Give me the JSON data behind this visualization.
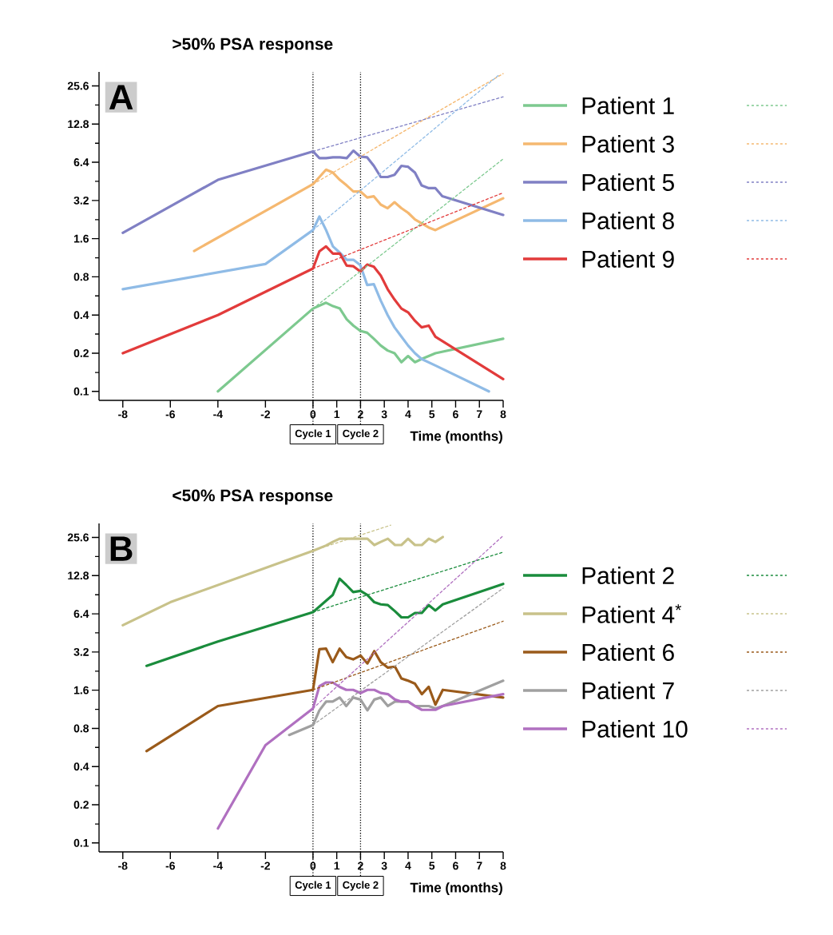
{
  "chart_data": [
    {
      "type": "line",
      "title": ">50% PSA response",
      "xlabel": "Time (months)",
      "annotations": [
        "A"
      ],
      "legend": "right",
      "log": "y",
      "line_style": "solid",
      "xlim": [
        -9,
        8
      ],
      "ylim": [
        0.085,
        33
      ],
      "xticks": [
        -8,
        -6,
        -4,
        -2,
        0,
        1,
        2,
        3,
        4,
        5,
        6,
        7,
        8
      ],
      "yticks": [
        0.1,
        {
          "value": 0.141,
          "label": null
        },
        0.2,
        {
          "value": 0.283,
          "label": null
        },
        0.4,
        {
          "value": 0.566,
          "label": null
        },
        0.8,
        {
          "value": 1.13,
          "label": null
        },
        1.6,
        {
          "value": 2.26,
          "label": null
        },
        3.2,
        {
          "value": 4.53,
          "label": null
        },
        6.4,
        {
          "value": 9.05,
          "label": null
        },
        12.8,
        {
          "value": 18.1,
          "label": null
        },
        25.6
      ],
      "ref_lines": [
        {
          "axis": "x",
          "value": 0,
          "label": "Cycle 1",
          "color": "#000000",
          "line_style": "dotted"
        },
        {
          "axis": "x",
          "value": 2,
          "label": "Cycle 2",
          "color": "#000000",
          "line_style": "dotted"
        }
      ],
      "series": [
        {
          "name": "Patient 1",
          "color": "#7dc98f",
          "x": [
            -4,
            0,
            0.55,
            0.84,
            1.13,
            1.42,
            1.7,
            1.99,
            2.28,
            2.56,
            2.85,
            3.14,
            3.43,
            3.72,
            4.0,
            4.29,
            4.57,
            4.87,
            5.15,
            8
          ],
          "values": [
            0.1,
            0.45,
            0.5,
            0.47,
            0.45,
            0.37,
            0.33,
            0.3,
            0.29,
            0.26,
            0.23,
            0.21,
            0.2,
            0.17,
            0.19,
            0.17,
            0.18,
            0.19,
            0.2,
            0.26
          ]
        },
        {
          "name": "Patient 3",
          "color": "#f5b870",
          "x": [
            -5,
            0,
            0.55,
            0.84,
            1.13,
            1.42,
            1.7,
            1.99,
            2.28,
            2.56,
            2.85,
            3.14,
            3.43,
            3.72,
            4.0,
            4.29,
            4.87,
            5.15,
            5.44,
            8
          ],
          "values": [
            1.28,
            4.3,
            5.6,
            5.3,
            4.65,
            4.2,
            3.77,
            3.77,
            3.38,
            3.45,
            2.97,
            2.78,
            3.1,
            2.78,
            2.56,
            2.27,
            1.96,
            1.87,
            1.99,
            3.33
          ]
        },
        {
          "name": "Patient 5",
          "color": "#8080c4",
          "x": [
            -8,
            -4,
            0,
            0.27,
            0.55,
            0.84,
            1.13,
            1.42,
            1.7,
            1.99,
            2.28,
            2.56,
            2.85,
            3.14,
            3.43,
            3.72,
            4.0,
            4.29,
            4.57,
            4.87,
            5.15,
            5.44,
            8
          ],
          "values": [
            1.78,
            4.65,
            7.8,
            6.9,
            6.9,
            7.0,
            7.0,
            6.9,
            7.9,
            7.1,
            7.0,
            6.0,
            4.9,
            4.9,
            5.1,
            6.0,
            5.9,
            5.3,
            4.2,
            4.0,
            4.0,
            3.46,
            2.46
          ]
        },
        {
          "name": "Patient 8",
          "color": "#8fbbe6",
          "x": [
            -8,
            -2,
            0,
            0.27,
            0.55,
            0.84,
            1.13,
            1.42,
            1.7,
            1.99,
            2.28,
            2.56,
            2.85,
            3.14,
            3.43,
            3.72,
            4.0,
            4.29,
            4.57,
            5.15,
            7.4
          ],
          "values": [
            0.64,
            1.01,
            1.87,
            2.39,
            1.87,
            1.39,
            1.24,
            1.09,
            1.09,
            0.99,
            0.69,
            0.7,
            0.52,
            0.4,
            0.32,
            0.27,
            0.23,
            0.2,
            0.18,
            0.16,
            0.1
          ]
        },
        {
          "name": "Patient 9",
          "color": "#e23b3b",
          "x": [
            -8,
            -4,
            0,
            0.27,
            0.55,
            0.84,
            1.13,
            1.42,
            1.7,
            1.99,
            2.28,
            2.56,
            2.85,
            3.14,
            3.43,
            3.72,
            4.0,
            4.29,
            4.57,
            4.87,
            5.15,
            8
          ],
          "values": [
            0.2,
            0.4,
            0.93,
            1.27,
            1.39,
            1.22,
            1.22,
            0.98,
            0.97,
            0.88,
            1.0,
            0.96,
            0.82,
            0.64,
            0.53,
            0.45,
            0.42,
            0.36,
            0.32,
            0.33,
            0.27,
            0.125
          ]
        },
        {
          "color": "#7dc98f",
          "line_style": "dashed",
          "x": [
            0,
            8
          ],
          "values": [
            0.45,
            6.8
          ]
        },
        {
          "color": "#f5b870",
          "line_style": "dashed",
          "x": [
            0,
            8
          ],
          "values": [
            4.3,
            32
          ]
        },
        {
          "color": "#8080c4",
          "line_style": "dashed",
          "x": [
            0,
            8
          ],
          "values": [
            7.8,
            21
          ]
        },
        {
          "color": "#8fbbe6",
          "line_style": "dashed",
          "x": [
            0,
            7.8
          ],
          "values": [
            1.87,
            31
          ]
        },
        {
          "color": "#e23b3b",
          "line_style": "dashed",
          "x": [
            0,
            8
          ],
          "values": [
            0.93,
            3.68
          ]
        }
      ]
    },
    {
      "type": "line",
      "title": "<50% PSA response",
      "xlabel": "Time (months)",
      "annotations": [
        "B"
      ],
      "legend": "right",
      "log": "y",
      "line_style": "solid",
      "xlim": [
        -9,
        8
      ],
      "ylim": [
        0.085,
        33
      ],
      "xticks": [
        -8,
        -6,
        -4,
        -2,
        0,
        1,
        2,
        3,
        4,
        5,
        6,
        7,
        8
      ],
      "yticks": [
        0.1,
        {
          "value": 0.141,
          "label": null
        },
        0.2,
        {
          "value": 0.283,
          "label": null
        },
        0.4,
        {
          "value": 0.566,
          "label": null
        },
        0.8,
        {
          "value": 1.13,
          "label": null
        },
        1.6,
        {
          "value": 2.26,
          "label": null
        },
        3.2,
        {
          "value": 4.53,
          "label": null
        },
        6.4,
        {
          "value": 9.05,
          "label": null
        },
        12.8,
        {
          "value": 18.1,
          "label": null
        },
        25.6
      ],
      "ref_lines": [
        {
          "axis": "x",
          "value": 0,
          "label": "Cycle 1",
          "color": "#000000",
          "line_style": "dotted"
        },
        {
          "axis": "x",
          "value": 2,
          "label": "Cycle 2",
          "color": "#000000",
          "line_style": "dotted"
        }
      ],
      "series": [
        {
          "name": "Patient 2",
          "color": "#1a8c3c",
          "x": [
            -7,
            -4,
            0,
            0.83,
            1.12,
            1.4,
            1.69,
            2.0,
            2.29,
            2.58,
            2.85,
            3.15,
            3.45,
            3.72,
            4.0,
            4.29,
            4.58,
            4.87,
            5.15,
            5.46,
            8
          ],
          "values": [
            2.49,
            3.87,
            6.6,
            9.0,
            12.1,
            10.8,
            9.5,
            9.7,
            9.0,
            7.9,
            7.6,
            7.5,
            6.7,
            6.0,
            6.0,
            6.5,
            6.5,
            7.5,
            6.8,
            7.6,
            11.0
          ]
        },
        {
          "name": "Patient 4$^{*}$",
          "color": "#c8c28a",
          "x": [
            -8,
            -6,
            0,
            0.55,
            0.83,
            1.12,
            1.42,
            1.69,
            2.0,
            2.29,
            2.58,
            2.85,
            3.15,
            3.45,
            3.72,
            4.0,
            4.29,
            4.58,
            4.87,
            5.15,
            5.46
          ],
          "values": [
            5.2,
            7.9,
            20.1,
            22.1,
            23.6,
            25,
            25,
            25,
            25,
            25,
            22.3,
            23.6,
            25,
            22.3,
            22.3,
            25,
            22.3,
            22.3,
            25,
            23.6,
            25.8
          ]
        },
        {
          "name": "Patient 6",
          "color": "#9a5a1a",
          "x": [
            -7,
            -4,
            0,
            0.27,
            0.55,
            0.83,
            1.12,
            1.4,
            1.69,
            2.0,
            2.29,
            2.58,
            2.85,
            3.15,
            3.45,
            3.72,
            4.0,
            4.29,
            4.58,
            4.87,
            5.15,
            5.46,
            8
          ],
          "values": [
            0.53,
            1.2,
            1.61,
            3.37,
            3.4,
            2.66,
            3.4,
            2.92,
            2.8,
            3.0,
            2.6,
            3.25,
            2.66,
            2.41,
            2.45,
            1.98,
            1.9,
            1.8,
            1.49,
            1.7,
            1.23,
            1.61,
            1.4
          ]
        },
        {
          "name": "Patient 7",
          "color": "#a0a0a0",
          "x": [
            -1,
            0,
            0.27,
            0.55,
            0.83,
            1.12,
            1.4,
            1.69,
            2.0,
            2.29,
            2.58,
            2.85,
            3.15,
            3.45,
            3.72,
            4.0,
            4.29,
            4.58,
            4.87,
            5.15,
            5.46,
            8
          ],
          "values": [
            0.71,
            0.85,
            1.11,
            1.3,
            1.3,
            1.4,
            1.2,
            1.4,
            1.35,
            1.11,
            1.35,
            1.4,
            1.2,
            1.3,
            1.3,
            1.3,
            1.2,
            1.2,
            1.2,
            1.15,
            1.2,
            1.9
          ]
        },
        {
          "name": "Patient 10",
          "color": "#b070c0",
          "x": [
            -4,
            -2,
            0,
            0.27,
            0.55,
            0.83,
            1.12,
            1.4,
            1.69,
            2.0,
            2.29,
            2.58,
            2.85,
            3.15,
            3.45,
            3.72,
            4.0,
            4.29,
            4.58,
            4.87,
            5.15,
            5.46,
            8
          ],
          "values": [
            0.13,
            0.59,
            1.15,
            1.72,
            1.84,
            1.84,
            1.7,
            1.61,
            1.61,
            1.52,
            1.61,
            1.61,
            1.52,
            1.49,
            1.35,
            1.3,
            1.3,
            1.2,
            1.12,
            1.12,
            1.12,
            1.2,
            1.49
          ]
        },
        {
          "color": "#1a8c3c",
          "line_style": "dashed",
          "x": [
            0,
            8
          ],
          "values": [
            6.6,
            19.6
          ]
        },
        {
          "color": "#c8c28a",
          "line_style": "dashed",
          "x": [
            0,
            3.27
          ],
          "values": [
            20.1,
            32
          ]
        },
        {
          "color": "#9a5a1a",
          "line_style": "dashed",
          "x": [
            0,
            8
          ],
          "values": [
            1.61,
            5.6
          ]
        },
        {
          "color": "#a0a0a0",
          "line_style": "dashed",
          "x": [
            0,
            8
          ],
          "values": [
            0.85,
            10.2
          ]
        },
        {
          "color": "#b070c0",
          "line_style": "dashed",
          "x": [
            0,
            8
          ],
          "values": [
            1.15,
            26.4
          ]
        }
      ]
    }
  ]
}
